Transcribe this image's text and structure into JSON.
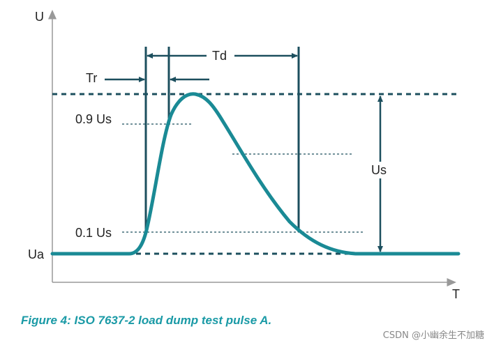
{
  "diagram": {
    "axis_y_label": "U",
    "axis_x_label": "T",
    "label_tr": "Tr",
    "label_td": "Td",
    "label_09us": "0.9 Us",
    "label_01us": "0.1 Us",
    "label_ua": "Ua",
    "label_us": "Us"
  },
  "caption": "Figure 4: ISO 7637-2 load dump test pulse A.",
  "watermark": "CSDN @小幽余生不加糖",
  "colors": {
    "pulse": "#1a8a95",
    "dark": "#1c4f5e",
    "axis": "#999999",
    "caption": "#1a9aa6"
  }
}
